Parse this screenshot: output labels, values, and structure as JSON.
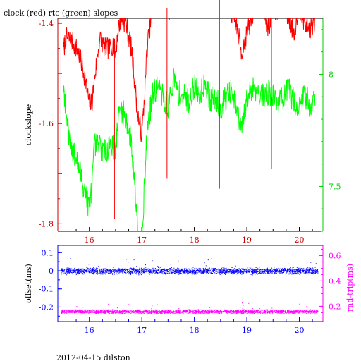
{
  "chart_data": [
    {
      "type": "line",
      "title": "clock (red) rtc (green) slopes",
      "xlabel": "",
      "ylabel_left": "clockslope",
      "xlim": [
        15.4,
        20.45
      ],
      "ylim_left": [
        -1.815,
        -1.39
      ],
      "ylim_right": [
        7.3,
        8.25
      ],
      "x_ticks": [
        "16",
        "17",
        "18",
        "19",
        "20"
      ],
      "y_ticks_left": [
        "-1.4",
        "-1.6",
        "-1.8"
      ],
      "y_ticks_right": [
        "8",
        "7.5"
      ],
      "colors": {
        "clock": "#ff0000",
        "rtc": "#00ff00",
        "axis_left": "#cc0000",
        "axis_right": "#00cc00",
        "frame": "#000000"
      },
      "series": [
        {
          "name": "clock",
          "axis": "left",
          "x": [
            15.5,
            15.55,
            15.6,
            15.7,
            15.8,
            15.9,
            15.95,
            16.0,
            16.05,
            16.1,
            16.2,
            16.3,
            16.4,
            16.45,
            16.5,
            16.55,
            16.6,
            16.7,
            16.8,
            16.85,
            16.9,
            16.95,
            17.0,
            17.05,
            17.1,
            17.2,
            17.3,
            17.4,
            17.5,
            17.6,
            17.7,
            17.8,
            17.9,
            18.0,
            18.1,
            18.2,
            18.3,
            18.4,
            18.5,
            18.6,
            18.7,
            18.8,
            18.9,
            19.0,
            19.1,
            19.2,
            19.3,
            19.4,
            19.5,
            19.6,
            19.7,
            19.8,
            19.9,
            20.0,
            20.1,
            20.2,
            20.3
          ],
          "y": [
            -1.46,
            -1.43,
            -1.43,
            -1.44,
            -1.46,
            -1.5,
            -1.53,
            -1.56,
            -1.56,
            -1.51,
            -1.43,
            -1.45,
            -1.45,
            -1.44,
            -1.46,
            -1.41,
            -1.39,
            -1.4,
            -1.45,
            -1.5,
            -1.56,
            -1.6,
            -1.62,
            -1.55,
            -1.45,
            -1.37,
            -1.36,
            -1.33,
            -1.38,
            -1.36,
            -1.33,
            -1.31,
            -1.33,
            -1.28,
            -1.3,
            -1.33,
            -1.32,
            -1.36,
            -1.3,
            -1.34,
            -1.38,
            -1.4,
            -1.46,
            -1.42,
            -1.39,
            -1.34,
            -1.36,
            -1.41,
            -1.38,
            -1.37,
            -1.36,
            -1.39,
            -1.42,
            -1.36,
            -1.4,
            -1.41,
            -1.4
          ]
        },
        {
          "name": "rtc",
          "axis": "right",
          "x": [
            15.5,
            15.55,
            15.6,
            15.7,
            15.8,
            15.9,
            16.0,
            16.05,
            16.1,
            16.2,
            16.3,
            16.4,
            16.45,
            16.5,
            16.55,
            16.6,
            16.7,
            16.8,
            16.85,
            16.9,
            16.95,
            17.0,
            17.05,
            17.1,
            17.2,
            17.3,
            17.4,
            17.5,
            17.6,
            17.7,
            17.8,
            17.9,
            18.0,
            18.1,
            18.2,
            18.3,
            18.4,
            18.5,
            18.6,
            18.7,
            18.8,
            18.9,
            19.0,
            19.1,
            19.2,
            19.3,
            19.4,
            19.5,
            19.6,
            19.7,
            19.8,
            19.9,
            20.0,
            20.1,
            20.2,
            20.3
          ],
          "y": [
            7.95,
            7.85,
            7.75,
            7.65,
            7.58,
            7.5,
            7.4,
            7.5,
            7.68,
            7.68,
            7.65,
            7.7,
            7.68,
            7.66,
            7.8,
            7.85,
            7.8,
            7.7,
            7.55,
            7.4,
            7.25,
            7.28,
            7.5,
            7.75,
            7.9,
            7.95,
            7.9,
            7.85,
            7.98,
            7.92,
            7.9,
            7.88,
            7.95,
            7.9,
            7.98,
            7.88,
            7.9,
            7.85,
            7.9,
            7.92,
            7.85,
            7.75,
            7.88,
            7.95,
            7.93,
            7.9,
            7.92,
            7.9,
            7.88,
            7.9,
            7.93,
            7.88,
            7.85,
            7.92,
            7.86,
            7.9
          ]
        }
      ],
      "spikes": [
        {
          "series": "clock",
          "x": 15.46,
          "y": -1.78
        },
        {
          "series": "clock",
          "x": 16.48,
          "y": -1.79
        },
        {
          "series": "clock",
          "x": 17.48,
          "y": -1.71
        },
        {
          "series": "clock",
          "x": 18.48,
          "y": -1.73
        },
        {
          "series": "clock",
          "x": 19.47,
          "y": -1.69
        }
      ]
    },
    {
      "type": "scatter",
      "xlabel": "",
      "ylabel_left": "offset(ms)",
      "ylabel_right": "rnd-trip(ms)",
      "xlim": [
        15.4,
        20.45
      ],
      "ylim_left": [
        -0.28,
        0.14
      ],
      "ylim_right": [
        0.08,
        0.68
      ],
      "x_ticks": [
        "16",
        "17",
        "18",
        "19",
        "20"
      ],
      "y_ticks_left": [
        "0.1",
        "0",
        "-0.1",
        "-0.2"
      ],
      "y_ticks_right": [
        "0.6",
        "0.4",
        "0.2"
      ],
      "colors": {
        "offset": "#0000ff",
        "rtt": "#ff00ff",
        "frame": "#0000ff",
        "right_axis": "#ff00ff"
      },
      "series": [
        {
          "name": "offset",
          "axis": "left",
          "level": 0.0,
          "spread": 0.008,
          "x_range": [
            15.45,
            20.35
          ]
        },
        {
          "name": "rtt",
          "axis": "right",
          "level": 0.16,
          "spread": 0.007,
          "x_range": [
            15.45,
            20.35
          ]
        }
      ]
    }
  ],
  "footer": "2012-04-15 dilston"
}
